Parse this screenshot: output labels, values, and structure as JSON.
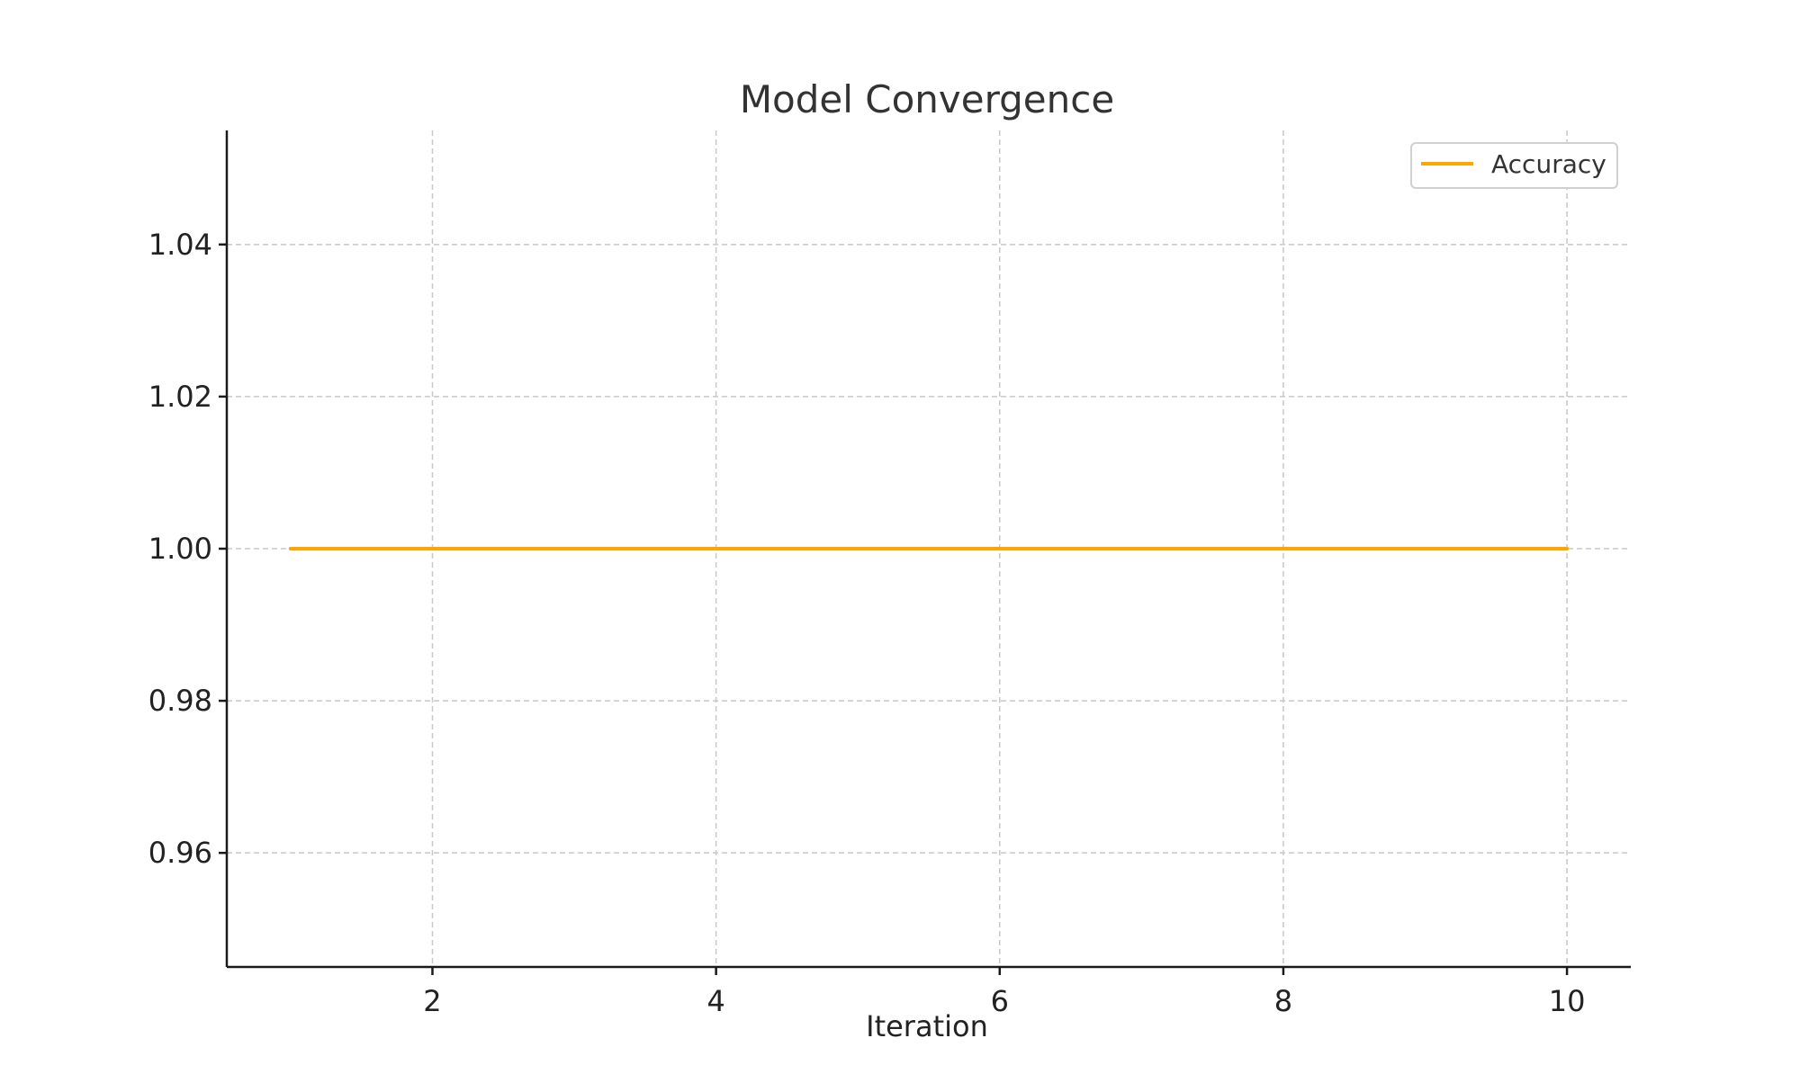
{
  "chart_data": {
    "type": "line",
    "title": "Model Convergence",
    "xlabel": "Iteration",
    "ylabel": "",
    "x": [
      1,
      2,
      3,
      4,
      5,
      6,
      7,
      8,
      9,
      10
    ],
    "series": [
      {
        "name": "Accuracy",
        "values": [
          1.0,
          1.0,
          1.0,
          1.0,
          1.0,
          1.0,
          1.0,
          1.0,
          1.0,
          1.0
        ],
        "color": "#FFA500"
      }
    ],
    "xlim": [
      0.55,
      10.45
    ],
    "ylim": [
      0.945,
      1.055
    ],
    "xticks": [
      2,
      4,
      6,
      8,
      10
    ],
    "xtick_labels": [
      "2",
      "4",
      "6",
      "8",
      "10"
    ],
    "yticks": [
      0.96,
      0.98,
      1.0,
      1.02,
      1.04
    ],
    "ytick_labels": [
      "0.96",
      "0.98",
      "1.00",
      "1.02",
      "1.04"
    ],
    "grid": true,
    "legend_position": "top-right"
  }
}
